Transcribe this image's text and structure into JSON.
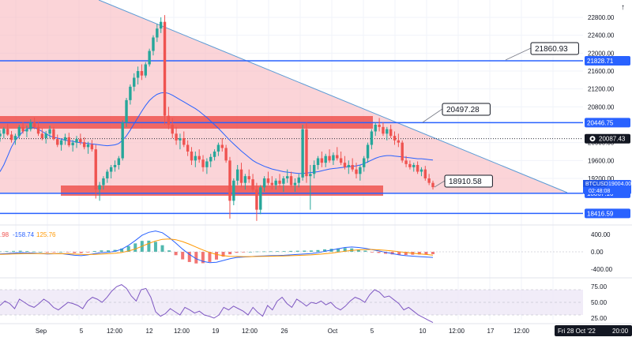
{
  "instrument": {
    "symbol": "BTCUSD",
    "last_price": "19004.00",
    "countdown": "02:48:08",
    "date_label": "Fri 28 Oct '22",
    "time_label": "20:00"
  },
  "colors": {
    "up": "#26a69a",
    "down": "#ef5350",
    "level_line": "#2962ff",
    "zone_fill": "#ef5350",
    "triangle_fill": "#f8b8be",
    "trend_line": "#5b9bd5",
    "ma_line": "#2962ff",
    "macd_line": "#2962ff",
    "signal_line": "#ff9800",
    "rsi_line": "#7e57c2",
    "rsi_band": "#ede7f6",
    "axis_text": "#131722",
    "label_bg": "#2962ff",
    "grid": "#f0f3fa"
  },
  "chart_data": [
    {
      "type": "candlestick",
      "title": "BTCUSD",
      "x_ticks": [
        "Sep",
        "5",
        "12:00",
        "12",
        "12:00",
        "19",
        "12:00",
        "26",
        "Oct",
        "5",
        "10",
        "12:00",
        "17",
        "12:00"
      ],
      "y_ticks": [
        "22800.00",
        "22400.00",
        "22000.00",
        "21600.00",
        "21200.00",
        "20800.00",
        "20000.00",
        "19600.00",
        "19200.00"
      ],
      "ylim": [
        18100,
        23000
      ],
      "horizontal_levels": [
        {
          "name": "level-21828",
          "price": 21828.71,
          "label": "21828.71"
        },
        {
          "name": "level-20446",
          "price": 20446.75,
          "label": "20446.75"
        },
        {
          "name": "level-18867",
          "price": 18867.16,
          "label": "18867.16"
        },
        {
          "name": "level-18416",
          "price": 18416.59,
          "label": "18416.59"
        }
      ],
      "price_markers": [
        {
          "name": "marker-20087",
          "price": 20087.43,
          "label": "20087.43"
        },
        {
          "name": "marker-current",
          "price": 19004.0,
          "label": "19004.00"
        }
      ],
      "callouts": [
        "21860.93",
        "20497.28",
        "18910.58"
      ],
      "candles": [
        [
          20140,
          20280,
          20020,
          20200
        ],
        [
          20200,
          20350,
          20100,
          20310
        ],
        [
          20310,
          20420,
          20150,
          20180
        ],
        [
          20180,
          20260,
          20000,
          20060
        ],
        [
          20060,
          20200,
          19950,
          20150
        ],
        [
          20150,
          20400,
          20100,
          20350
        ],
        [
          20350,
          20460,
          20200,
          20250
        ],
        [
          20250,
          20380,
          20120,
          20300
        ],
        [
          20300,
          20520,
          20250,
          20450
        ],
        [
          20450,
          20560,
          20300,
          20350
        ],
        [
          20350,
          20450,
          20150,
          20200
        ],
        [
          20200,
          20320,
          20050,
          20100
        ],
        [
          20100,
          20260,
          19980,
          20200
        ],
        [
          20200,
          20380,
          20100,
          20300
        ],
        [
          20300,
          20350,
          20050,
          20080
        ],
        [
          20080,
          20180,
          19900,
          19950
        ],
        [
          19950,
          20080,
          19820,
          20050
        ],
        [
          20050,
          20200,
          19950,
          20120
        ],
        [
          20120,
          20220,
          19900,
          19940
        ],
        [
          19940,
          20060,
          19800,
          20000
        ],
        [
          20000,
          20150,
          19880,
          20080
        ],
        [
          20080,
          20200,
          19950,
          20010
        ],
        [
          20010,
          20120,
          19850,
          19900
        ],
        [
          19900,
          20020,
          19750,
          19960
        ],
        [
          19960,
          20060,
          19800,
          19850
        ],
        [
          19850,
          19950,
          18750,
          18950
        ],
        [
          18950,
          19120,
          18700,
          19050
        ],
        [
          19050,
          19250,
          18950,
          19200
        ],
        [
          19200,
          19400,
          19100,
          19350
        ],
        [
          19350,
          19500,
          19200,
          19450
        ],
        [
          19450,
          19600,
          19350,
          19500
        ],
        [
          19500,
          19700,
          19400,
          19650
        ],
        [
          19650,
          20500,
          19600,
          20450
        ],
        [
          20450,
          21000,
          20350,
          20950
        ],
        [
          20950,
          21300,
          20850,
          21250
        ],
        [
          21250,
          21550,
          21150,
          21450
        ],
        [
          21450,
          21700,
          21300,
          21600
        ],
        [
          21600,
          21750,
          21400,
          21500
        ],
        [
          21500,
          21800,
          21450,
          21750
        ],
        [
          21750,
          22100,
          21700,
          22050
        ],
        [
          22050,
          22400,
          21950,
          22350
        ],
        [
          22350,
          22650,
          22250,
          22550
        ],
        [
          22550,
          22800,
          22450,
          22700
        ],
        [
          22700,
          22850,
          20400,
          20600
        ],
        [
          20600,
          20800,
          20300,
          20400
        ],
        [
          20400,
          20550,
          20100,
          20200
        ],
        [
          20200,
          20350,
          19950,
          20050
        ],
        [
          20050,
          20200,
          19850,
          20100
        ],
        [
          20100,
          20250,
          19900,
          19950
        ],
        [
          19950,
          20050,
          19700,
          19800
        ],
        [
          19800,
          19900,
          19500,
          19600
        ],
        [
          19600,
          19800,
          19450,
          19700
        ],
        [
          19700,
          19850,
          19550,
          19620
        ],
        [
          19620,
          19720,
          19350,
          19450
        ],
        [
          19450,
          19650,
          19300,
          19580
        ],
        [
          19580,
          19750,
          19450,
          19680
        ],
        [
          19680,
          19850,
          19600,
          19800
        ],
        [
          19800,
          20000,
          19700,
          19950
        ],
        [
          19950,
          20100,
          19800,
          19880
        ],
        [
          19880,
          19950,
          19550,
          19600
        ],
        [
          19600,
          19680,
          18300,
          18700
        ],
        [
          18700,
          19200,
          18600,
          19150
        ],
        [
          19150,
          19500,
          19050,
          19400
        ],
        [
          19400,
          19550,
          19000,
          19100
        ],
        [
          19100,
          19300,
          18950,
          19250
        ],
        [
          19250,
          19400,
          19100,
          19180
        ],
        [
          19180,
          19300,
          18900,
          18950
        ],
        [
          18950,
          19100,
          18250,
          18500
        ],
        [
          18500,
          19050,
          18400,
          19000
        ],
        [
          19000,
          19250,
          18900,
          19200
        ],
        [
          19200,
          19350,
          19050,
          19100
        ],
        [
          19100,
          19250,
          18950,
          19050
        ],
        [
          19050,
          19200,
          18950,
          19150
        ],
        [
          19150,
          19300,
          19000,
          19080
        ],
        [
          19080,
          19250,
          18900,
          19200
        ],
        [
          19200,
          19400,
          19100,
          19250
        ],
        [
          19250,
          19350,
          19000,
          19050
        ],
        [
          19050,
          19200,
          18900,
          19100
        ],
        [
          19100,
          19300,
          19000,
          19220
        ],
        [
          19220,
          20400,
          19150,
          20300
        ],
        [
          20300,
          20450,
          19100,
          19250
        ],
        [
          19250,
          19500,
          18500,
          19300
        ],
        [
          19300,
          19600,
          19200,
          19500
        ],
        [
          19500,
          19700,
          19400,
          19650
        ],
        [
          19650,
          19800,
          19450,
          19550
        ],
        [
          19550,
          19750,
          19450,
          19700
        ],
        [
          19700,
          19850,
          19550,
          19600
        ],
        [
          19600,
          19780,
          19500,
          19720
        ],
        [
          19720,
          19900,
          19600,
          19650
        ],
        [
          19650,
          19800,
          19500,
          19550
        ],
        [
          19550,
          19700,
          19400,
          19450
        ],
        [
          19450,
          19600,
          19300,
          19500
        ],
        [
          19500,
          19650,
          19350,
          19400
        ],
        [
          19400,
          19550,
          19200,
          19300
        ],
        [
          19300,
          19500,
          19150,
          19450
        ],
        [
          19450,
          19700,
          19350,
          19650
        ],
        [
          19650,
          20000,
          19550,
          19950
        ],
        [
          19950,
          20300,
          19850,
          20250
        ],
        [
          20250,
          20450,
          20150,
          20400
        ],
        [
          20400,
          20550,
          20250,
          20350
        ],
        [
          20350,
          20450,
          20150,
          20200
        ],
        [
          20200,
          20350,
          20050,
          20300
        ],
        [
          20300,
          20400,
          20100,
          20150
        ],
        [
          20150,
          20250,
          19950,
          20050
        ],
        [
          20050,
          20200,
          19900,
          20000
        ],
        [
          20000,
          20050,
          19550,
          19600
        ],
        [
          19600,
          19700,
          19450,
          19520
        ],
        [
          19520,
          19600,
          19400,
          19450
        ],
        [
          19450,
          19550,
          19350,
          19500
        ],
        [
          19500,
          19580,
          19300,
          19350
        ],
        [
          19350,
          19450,
          19250,
          19400
        ],
        [
          19400,
          19480,
          19150,
          19200
        ],
        [
          19200,
          19300,
          19050,
          19100
        ],
        [
          19100,
          19150,
          18950,
          19004
        ]
      ],
      "moving_average": [
        19350,
        19500,
        19700,
        19900,
        20050,
        20150,
        20250,
        20300,
        20340,
        20330,
        20300,
        20250,
        20200,
        20150,
        20120,
        20100,
        20080,
        20050,
        20040,
        20030,
        20010,
        20000,
        19990,
        19980,
        19970,
        19960,
        19950,
        19940,
        19930,
        19940,
        19950,
        19980,
        20050,
        20150,
        20280,
        20420,
        20560,
        20700,
        20830,
        20940,
        21020,
        21080,
        21110,
        21120,
        21100,
        21060,
        21010,
        20960,
        20910,
        20860,
        20810,
        20760,
        20700,
        20630,
        20560,
        20480,
        20400,
        20320,
        20230,
        20140,
        20050,
        19970,
        19890,
        19810,
        19740,
        19670,
        19600,
        19550,
        19510,
        19470,
        19440,
        19410,
        19390,
        19370,
        19350,
        19340,
        19330,
        19320,
        19310,
        19310,
        19320,
        19330,
        19340,
        19350,
        19370,
        19390,
        19410,
        19420,
        19430,
        19440,
        19450,
        19460,
        19470,
        19480,
        19500,
        19530,
        19570,
        19610,
        19650,
        19680,
        19700,
        19710,
        19710,
        19700,
        19690,
        19680,
        19670,
        19660,
        19650,
        19640,
        19640,
        19630,
        19620,
        19610
      ]
    },
    {
      "type": "line",
      "title": "MACD",
      "legend_values": [
        ".98",
        "-158.74",
        "125.76"
      ],
      "y_ticks": [
        "400.00",
        "0.00",
        "-400.00"
      ],
      "ylim": [
        -600,
        600
      ],
      "series": [
        {
          "name": "macd",
          "values": [
            -50,
            -40,
            -30,
            -20,
            -25,
            -30,
            -40,
            -50,
            -45,
            -40,
            -60,
            -80,
            -90,
            -70,
            -40,
            -20,
            -10,
            10,
            60,
            150,
            260,
            380,
            450,
            480,
            440,
            330,
            200,
            60,
            -60,
            -160,
            -220,
            -250,
            -240,
            -200,
            -160,
            -130,
            -120,
            -110,
            -100,
            -95,
            -90,
            -85,
            -80,
            -70,
            -60,
            -50,
            -40,
            -20,
            10,
            40,
            70,
            100,
            110,
            100,
            80,
            50,
            20,
            -10,
            -40,
            -70,
            -90,
            -100,
            -110,
            -120,
            -130
          ]
        },
        {
          "name": "signal",
          "values": [
            -60,
            -55,
            -50,
            -45,
            -42,
            -40,
            -40,
            -42,
            -43,
            -42,
            -46,
            -52,
            -60,
            -62,
            -58,
            -52,
            -44,
            -34,
            -16,
            18,
            66,
            129,
            193,
            250,
            288,
            297,
            278,
            234,
            175,
            108,
            42,
            -16,
            -61,
            -89,
            -103,
            -108,
            -110,
            -110,
            -108,
            -105,
            -102,
            -99,
            -95,
            -90,
            -84,
            -77,
            -70,
            -60,
            -46,
            -29,
            -9,
            13,
            32,
            46,
            53,
            52,
            46,
            35,
            20,
            2,
            -16,
            -33,
            -48,
            -62,
            -76
          ]
        }
      ]
    },
    {
      "type": "line",
      "title": "RSI",
      "y_ticks": [
        "75.00",
        "50.00",
        "25.00"
      ],
      "ylim": [
        15,
        85
      ],
      "band": [
        30,
        70
      ],
      "series": [
        {
          "name": "rsi",
          "values": [
            45,
            52,
            48,
            40,
            55,
            50,
            45,
            42,
            48,
            55,
            50,
            42,
            38,
            44,
            50,
            48,
            45,
            40,
            52,
            58,
            55,
            50,
            58,
            68,
            75,
            78,
            72,
            60,
            52,
            70,
            72,
            58,
            35,
            28,
            32,
            40,
            35,
            30,
            42,
            38,
            33,
            36,
            30,
            28,
            25,
            30,
            42,
            38,
            44,
            40,
            36,
            30,
            42,
            34,
            28,
            45,
            38,
            52,
            58,
            48,
            42,
            55,
            50,
            44,
            50,
            48,
            52,
            46,
            50,
            42,
            38,
            44,
            52,
            58,
            55,
            50,
            62,
            70,
            66,
            58,
            60,
            54,
            48,
            38,
            42,
            36,
            30,
            26,
            22,
            18
          ]
        }
      ]
    }
  ]
}
